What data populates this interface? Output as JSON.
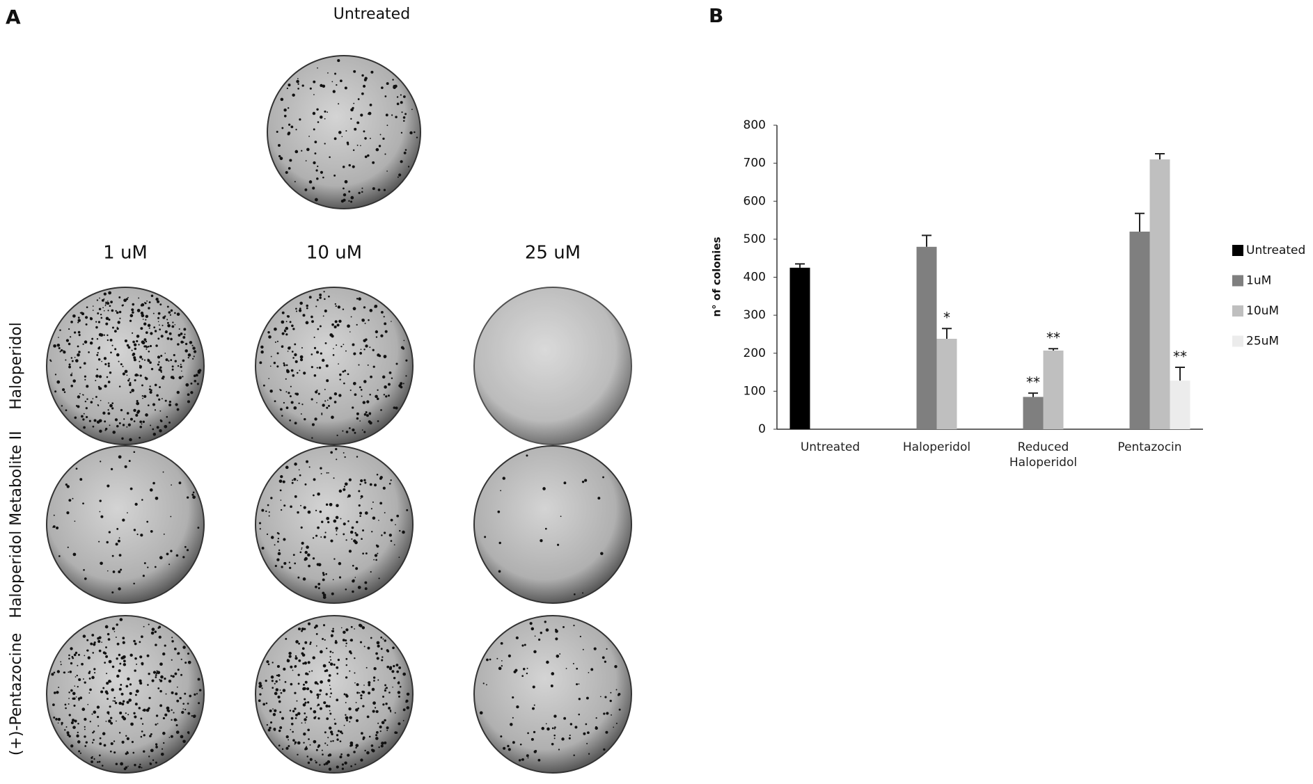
{
  "panel_a": {
    "label": "A",
    "top_label": "Untreated",
    "columns": [
      "1 uM",
      "10 uM",
      "25 uM"
    ],
    "rows": [
      "Haloperidol",
      "Haloperidol Metabolite II",
      "(+)-Pentazocine"
    ]
  },
  "chart_data": {
    "type": "bar",
    "panel_label": "B",
    "y_label": "n° of colonies",
    "categories": [
      "Untreated",
      "Haloperidol",
      "Reduced Haloperidol",
      "Pentazocin"
    ],
    "series": [
      {
        "name": "Untreated",
        "color": "#000000",
        "values": [
          425,
          null,
          null,
          null
        ],
        "errors": [
          10,
          null,
          null,
          null
        ],
        "annotations": [
          null,
          null,
          null,
          null
        ]
      },
      {
        "name": "1uM",
        "color": "#7f7f7f",
        "values": [
          null,
          480,
          85,
          520
        ],
        "errors": [
          null,
          30,
          10,
          48
        ],
        "annotations": [
          null,
          null,
          "**",
          null
        ]
      },
      {
        "name": "10uM",
        "color": "#bfbfbf",
        "values": [
          null,
          238,
          207,
          710
        ],
        "errors": [
          null,
          27,
          5,
          15
        ],
        "annotations": [
          null,
          "*",
          "**",
          null
        ]
      },
      {
        "name": "25uM",
        "color": "#ececec",
        "values": [
          null,
          null,
          null,
          128
        ],
        "errors": [
          null,
          null,
          null,
          35
        ],
        "annotations": [
          null,
          null,
          null,
          "**"
        ]
      }
    ],
    "ylim": [
      0,
      800
    ],
    "yticks": [
      0,
      100,
      200,
      300,
      400,
      500,
      600,
      700,
      800
    ],
    "legend": "right"
  }
}
